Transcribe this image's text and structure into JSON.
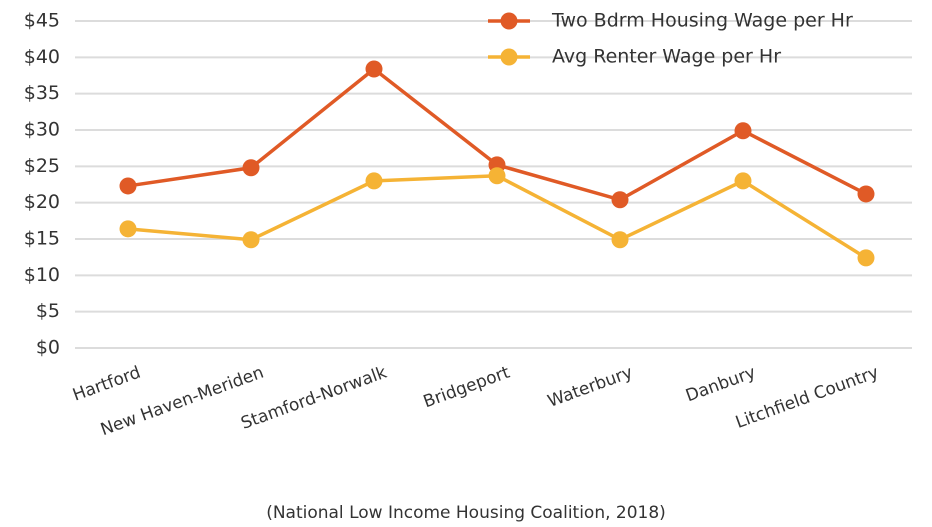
{
  "chart_data": {
    "type": "line",
    "categories": [
      "Hartford",
      "New Haven-Meriden",
      "Stamford-Norwalk",
      "Bridgeport",
      "Waterbury",
      "Danbury",
      "Litchfield Country"
    ],
    "series": [
      {
        "name": "Two Bdrm Housing Wage per Hr",
        "color": "#e05a26",
        "values": [
          22.3,
          24.8,
          38.4,
          25.2,
          20.4,
          29.9,
          21.2
        ]
      },
      {
        "name": "Avg Renter Wage per Hr",
        "color": "#f5b335",
        "values": [
          16.4,
          14.9,
          23.0,
          23.7,
          14.9,
          23.0,
          12.4
        ]
      }
    ],
    "ylim": [
      0,
      45
    ],
    "yticks": [
      {
        "value": 0,
        "label": "$0"
      },
      {
        "value": 5,
        "label": "$5"
      },
      {
        "value": 10,
        "label": "$10"
      },
      {
        "value": 15,
        "label": "$15"
      },
      {
        "value": 20,
        "label": "$20"
      },
      {
        "value": 25,
        "label": "$25"
      },
      {
        "value": 30,
        "label": "$30"
      },
      {
        "value": 35,
        "label": "$35"
      },
      {
        "value": 40,
        "label": "$40"
      },
      {
        "value": 45,
        "label": "$45"
      }
    ],
    "grid": true,
    "legend": "top-right",
    "caption": "(National Low Income Housing Coalition, 2018)"
  }
}
